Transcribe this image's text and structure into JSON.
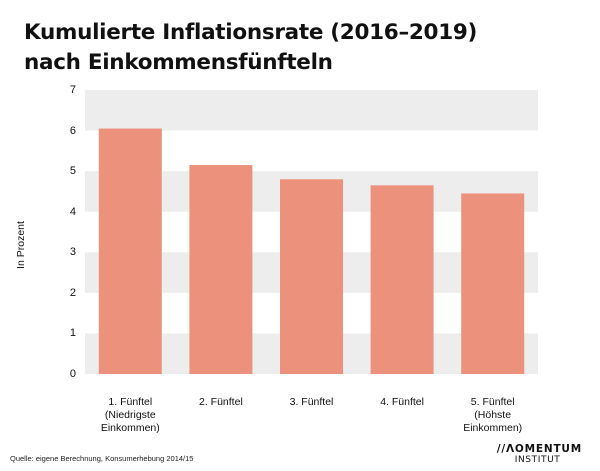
{
  "title_lines": [
    "Kumulierte Inflationsrate (2016–2019)",
    "nach Einkommensfünfteln"
  ],
  "source": "Quelle: eigene Berechnung, Konsumerhebung 2014/15",
  "logo": {
    "line1": "//ΛOMENTUM",
    "line2": "INSTITUT"
  },
  "colors": {
    "bar": "#ec917b",
    "band": "#ededed",
    "text": "#111111"
  },
  "chart_data": {
    "type": "bar",
    "title": "Kumulierte Inflationsrate (2016–2019) nach Einkommensfünfteln",
    "ylabel": "In Prozent",
    "ylim": [
      0,
      7
    ],
    "yticks": [
      "0",
      "1",
      "2",
      "3",
      "4",
      "5",
      "6",
      "7"
    ],
    "grid": "alternating horizontal bands",
    "categories": [
      "1. Fünftel (Niedrigste Einkommen)",
      "2. Fünftel",
      "3. Fünftel",
      "4. Fünftel",
      "5. Fünftel (Höhste Einkommen)"
    ],
    "category_lines": [
      [
        "1. Fünftel",
        "(Niedrigste",
        "Einkommen)"
      ],
      [
        "2. Fünftel"
      ],
      [
        "3. Fünftel"
      ],
      [
        "4. Fünftel"
      ],
      [
        "5. Fünftel",
        "(Höhste",
        "Einkommen)"
      ]
    ],
    "values": [
      6.05,
      5.15,
      4.8,
      4.65,
      4.45
    ]
  }
}
